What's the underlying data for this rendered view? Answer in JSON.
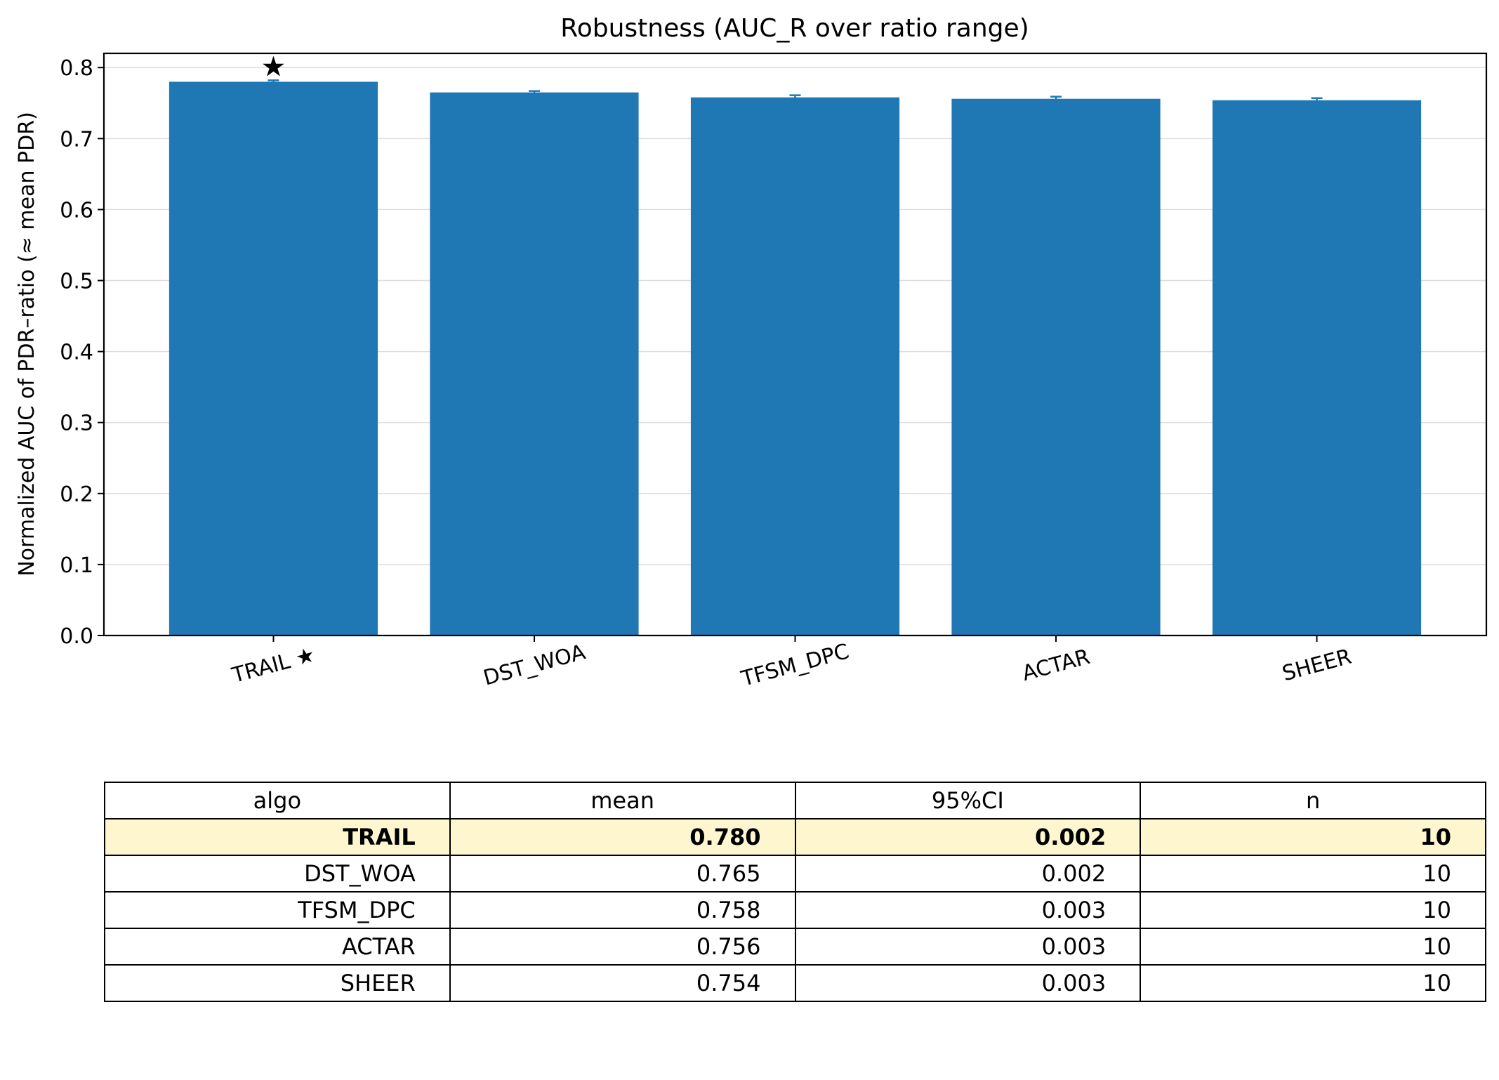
{
  "chart_data": {
    "type": "bar",
    "title": "Robustness (AUC_R over ratio range)",
    "xlabel": "",
    "ylabel": "Normalized AUC of PDR–ratio (≈ mean PDR)",
    "categories": [
      "TRAIL ★",
      "DST_WOA",
      "TFSM_DPC",
      "ACTAR",
      "SHEER"
    ],
    "values": [
      0.78,
      0.765,
      0.758,
      0.756,
      0.754
    ],
    "errors": [
      0.002,
      0.002,
      0.003,
      0.003,
      0.003
    ],
    "ylim": [
      0,
      0.82
    ],
    "yticks": [
      "0.0",
      "0.1",
      "0.2",
      "0.3",
      "0.4",
      "0.5",
      "0.6",
      "0.7",
      "0.8"
    ],
    "grid": "horizontal",
    "highlight_marker": "★",
    "highlight_index": 0,
    "bar_color": "#1f77b4"
  },
  "table": {
    "headers": [
      "algo",
      "mean",
      "95%CI",
      "n"
    ],
    "rows": [
      [
        "TRAIL",
        "0.780",
        "0.002",
        "10"
      ],
      [
        "DST_WOA",
        "0.765",
        "0.002",
        "10"
      ],
      [
        "TFSM_DPC",
        "0.758",
        "0.003",
        "10"
      ],
      [
        "ACTAR",
        "0.756",
        "0.003",
        "10"
      ],
      [
        "SHEER",
        "0.754",
        "0.003",
        "10"
      ]
    ],
    "highlight_row": 0,
    "highlight_color": "#fdf6cf"
  }
}
